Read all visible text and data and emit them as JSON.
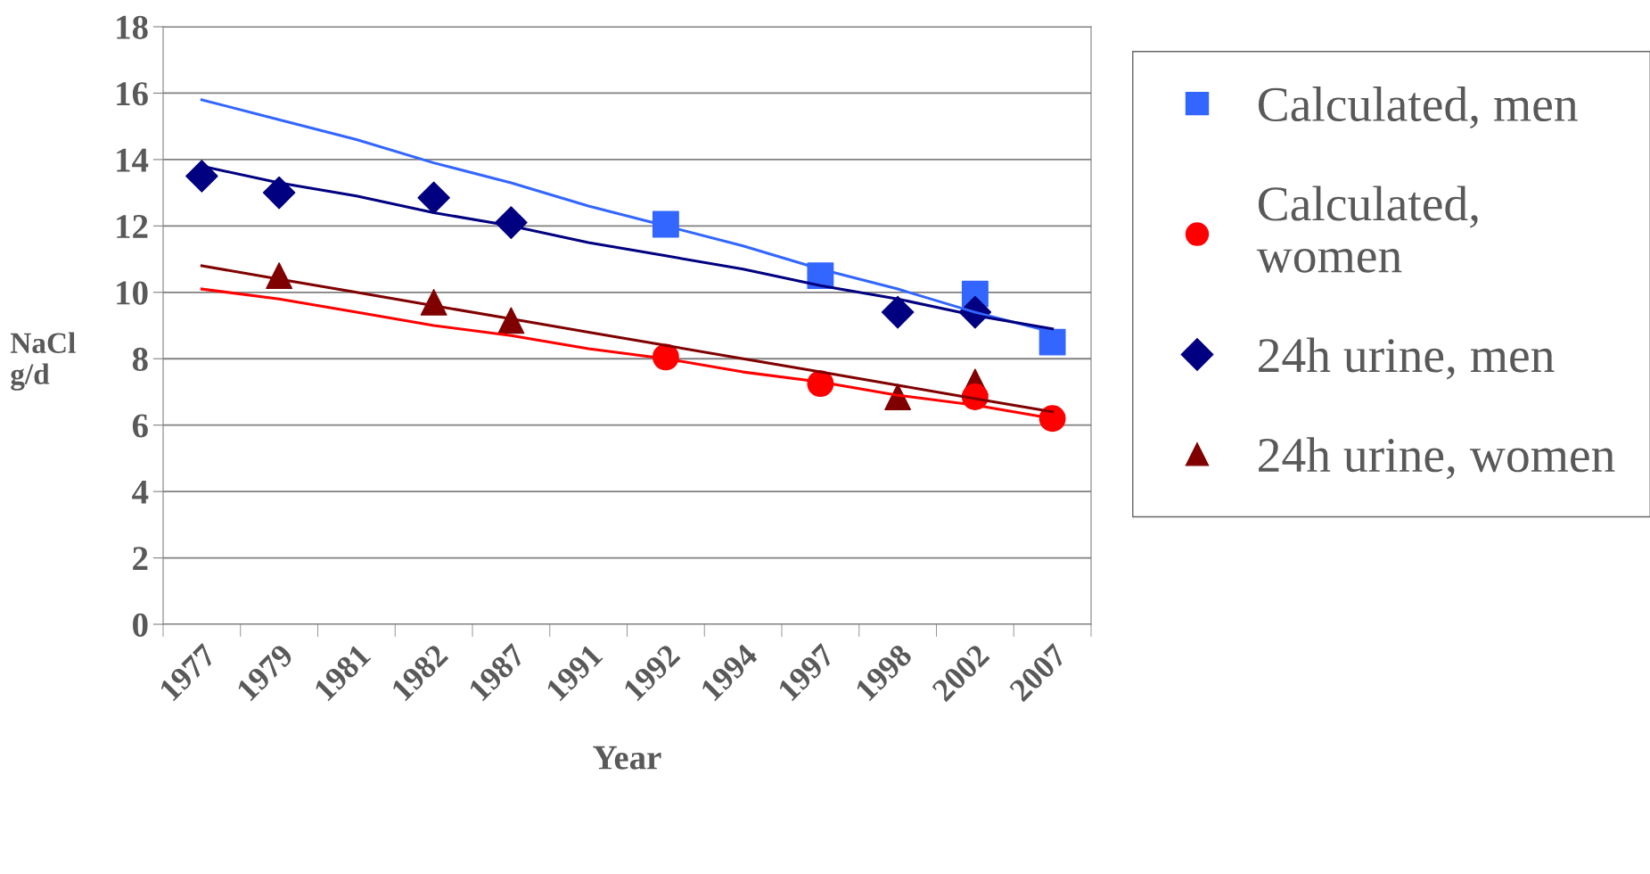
{
  "chart_data": {
    "type": "line",
    "xlabel": "Year",
    "ylabel": "NaCl\ng/d",
    "categories": [
      "1977",
      "1979",
      "1981",
      "1982",
      "1987",
      "1991",
      "1992",
      "1994",
      "1997",
      "1998",
      "2002",
      "2007"
    ],
    "series": [
      {
        "name": "Calculated, men",
        "type": "scatter",
        "marker": "square",
        "color": "#3366ff",
        "values": [
          null,
          null,
          null,
          null,
          null,
          null,
          12.05,
          null,
          10.5,
          null,
          9.95,
          8.5
        ]
      },
      {
        "name": "Calculated, women",
        "type": "scatter",
        "marker": "circle",
        "color": "#ff0000",
        "values": [
          null,
          null,
          null,
          null,
          null,
          null,
          8.05,
          null,
          7.25,
          null,
          6.85,
          6.2
        ]
      },
      {
        "name": "24h urine, men",
        "type": "scatter",
        "marker": "diamond",
        "color": "#000080",
        "values": [
          13.5,
          13.0,
          null,
          12.85,
          12.1,
          null,
          null,
          null,
          null,
          9.4,
          9.4,
          null
        ]
      },
      {
        "name": "24h urine, women",
        "type": "scatter",
        "marker": "triangle",
        "color": "#800000",
        "values": [
          null,
          10.5,
          null,
          9.7,
          9.15,
          null,
          null,
          null,
          null,
          6.85,
          7.3,
          null
        ]
      },
      {
        "color": "#3366ff",
        "values": [
          15.8,
          15.2,
          14.6,
          13.9,
          13.3,
          12.6,
          12.0,
          11.4,
          10.7,
          10.1,
          9.4,
          8.8
        ]
      },
      {
        "color": "#ff0000",
        "values": [
          10.1,
          9.8,
          9.4,
          9.0,
          8.7,
          8.3,
          8.0,
          7.6,
          7.3,
          6.9,
          6.6,
          6.2
        ]
      },
      {
        "color": "#000080",
        "values": [
          13.8,
          13.3,
          12.9,
          12.4,
          12.0,
          11.5,
          11.1,
          10.7,
          10.2,
          9.8,
          9.3,
          8.9
        ]
      },
      {
        "color": "#800000",
        "values": [
          10.8,
          10.4,
          10.0,
          9.6,
          9.2,
          8.8,
          8.4,
          8.0,
          7.6,
          7.2,
          6.8,
          6.4
        ]
      }
    ],
    "ylim": [
      0,
      18
    ],
    "yticks": [
      0,
      2,
      4,
      6,
      8,
      10,
      12,
      14,
      16,
      18
    ],
    "grid": "y",
    "legend": "right"
  }
}
